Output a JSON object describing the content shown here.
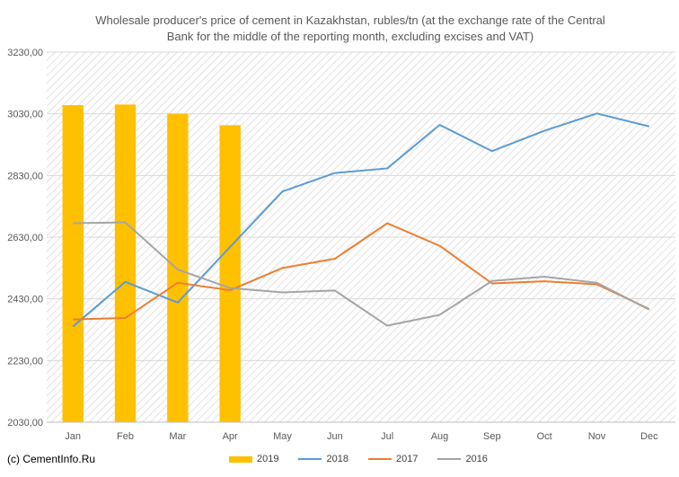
{
  "chart_data": {
    "type": "bar+line",
    "title": "Wholesale producer's price of cement in Kazakhstan, rubles/tn (at the exchange rate of the Central Bank for the middle of the reporting month, excluding excises and VAT)",
    "categories": [
      "Jan",
      "Feb",
      "Mar",
      "Apr",
      "May",
      "Jun",
      "Jul",
      "Aug",
      "Sep",
      "Oct",
      "Nov",
      "Dec"
    ],
    "ylim": [
      2030,
      3230
    ],
    "yticks": [
      "2030,00",
      "2230,00",
      "2430,00",
      "2630,00",
      "2830,00",
      "3030,00",
      "3230,00"
    ],
    "ytick_values": [
      2030,
      2230,
      2430,
      2630,
      2830,
      3030,
      3230
    ],
    "grid": "hatched",
    "legend": "bottom",
    "series": [
      {
        "name": "2019",
        "kind": "bar",
        "color": "#FFC000",
        "values": [
          3058,
          3060,
          3030,
          2993,
          null,
          null,
          null,
          null,
          null,
          null,
          null,
          null
        ]
      },
      {
        "name": "2018",
        "kind": "line",
        "color": "#5B9BD5",
        "values": [
          2340,
          2485,
          2418,
          2598,
          2778,
          2838,
          2853,
          2994,
          2909,
          2975,
          3031,
          2989
        ]
      },
      {
        "name": "2017",
        "kind": "line",
        "color": "#ED7D31",
        "values": [
          2363,
          2368,
          2482,
          2458,
          2530,
          2560,
          2675,
          2602,
          2480,
          2487,
          2477,
          2397
        ]
      },
      {
        "name": "2016",
        "kind": "line",
        "color": "#A5A5A5",
        "values": [
          2675,
          2678,
          2525,
          2465,
          2451,
          2457,
          2343,
          2378,
          2488,
          2502,
          2482,
          2395
        ]
      }
    ]
  },
  "credit": "(c) CementInfo.Ru"
}
